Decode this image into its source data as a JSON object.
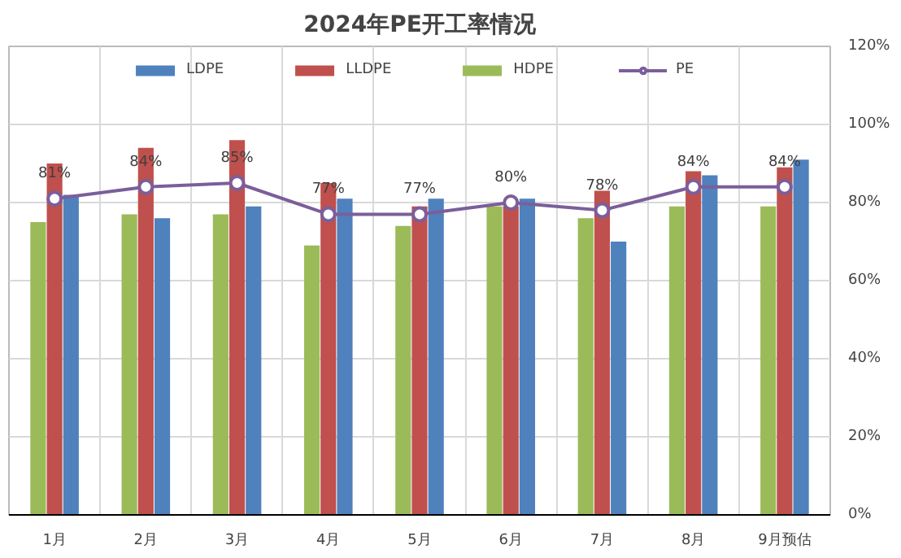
{
  "chart_data": {
    "type": "bar",
    "title": "2024年PE开工率情况",
    "categories": [
      "1月",
      "2月",
      "3月",
      "4月",
      "5月",
      "6月",
      "7月",
      "8月",
      "9月预估"
    ],
    "series": [
      {
        "name": "HDPE",
        "color": "#9bbb59",
        "values": [
          75,
          77,
          77,
          69,
          74,
          79,
          76,
          79,
          79
        ]
      },
      {
        "name": "LLDPE",
        "color": "#c0504d",
        "values": [
          90,
          94,
          96,
          85,
          79,
          79,
          83,
          88,
          89
        ]
      },
      {
        "name": "LDPE",
        "color": "#4f81bd",
        "values": [
          82,
          76,
          79,
          81,
          81,
          81,
          70,
          87,
          91
        ]
      },
      {
        "name": "PE",
        "type": "line",
        "color": "#7b5e9b",
        "marker": "circle",
        "values": [
          81,
          84,
          85,
          77,
          77,
          80,
          78,
          84,
          84
        ],
        "value_labels": [
          "81%",
          "84%",
          "85%",
          "77%",
          "77%",
          "80%",
          "78%",
          "84%",
          "84%"
        ]
      }
    ],
    "ylim": [
      0,
      120
    ],
    "yticks": [
      {
        "value": 0,
        "label": "0%"
      },
      {
        "value": 20,
        "label": "20%"
      },
      {
        "value": 40,
        "label": "40%"
      },
      {
        "value": 60,
        "label": "60%"
      },
      {
        "value": 80,
        "label": "80%"
      },
      {
        "value": 100,
        "label": "100%"
      },
      {
        "value": 120,
        "label": "120%"
      }
    ],
    "grid": true,
    "legend": "top"
  }
}
